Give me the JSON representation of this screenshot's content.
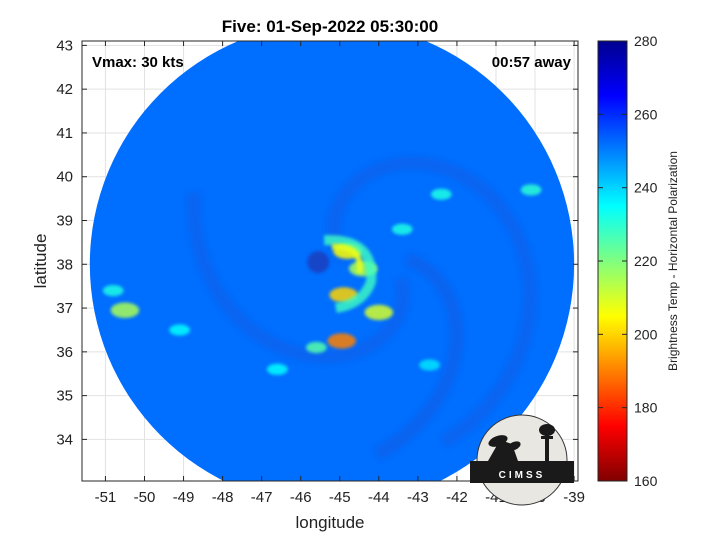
{
  "chart_data": {
    "type": "heatmap",
    "title": "Five: 01-Sep-2022 05:30:00",
    "xlabel": "longitude",
    "ylabel": "latitude",
    "xlim": [
      -51.6,
      -38.9
    ],
    "ylim": [
      33.05,
      43.1
    ],
    "x_ticks": [
      -51,
      -50,
      -49,
      -48,
      -47,
      -46,
      -45,
      -44,
      -43,
      -42,
      -41,
      -40,
      -39
    ],
    "y_ticks": [
      34,
      35,
      36,
      37,
      38,
      39,
      40,
      41,
      42,
      43
    ],
    "grid": true,
    "annotations": {
      "top_left": "Vmax: 30 kts",
      "top_right": "00:57 away"
    },
    "colorbar": {
      "label": "Brightness Temp - Horizontal Polarization",
      "range": [
        160,
        280
      ],
      "ticks": [
        160,
        180,
        200,
        220,
        240,
        260,
        280
      ],
      "colormap": "jet",
      "position": "right"
    },
    "swath": {
      "center_lon": -45.2,
      "center_lat": 38.0,
      "radius_deg": 6.2
    },
    "background_value": 252,
    "features": [
      {
        "type": "blob",
        "lon": -44.8,
        "lat": 38.3,
        "value": 205
      },
      {
        "type": "blob",
        "lon": -44.4,
        "lat": 37.9,
        "value": 215
      },
      {
        "type": "blob",
        "lon": -44.9,
        "lat": 37.3,
        "value": 200
      },
      {
        "type": "blob",
        "lon": -44.0,
        "lat": 36.9,
        "value": 210
      },
      {
        "type": "blob",
        "lon": -44.95,
        "lat": 36.25,
        "value": 190
      },
      {
        "type": "blob",
        "lon": -45.6,
        "lat": 36.1,
        "value": 225
      },
      {
        "type": "blob",
        "lon": -50.5,
        "lat": 36.95,
        "value": 215
      },
      {
        "type": "blob",
        "lon": -50.8,
        "lat": 37.4,
        "value": 232
      },
      {
        "type": "blob",
        "lon": -43.4,
        "lat": 38.8,
        "value": 232
      },
      {
        "type": "blob",
        "lon": -42.4,
        "lat": 39.6,
        "value": 232
      },
      {
        "type": "blob",
        "lon": -40.1,
        "lat": 39.7,
        "value": 230
      },
      {
        "type": "blob",
        "lon": -49.1,
        "lat": 36.5,
        "value": 235
      },
      {
        "type": "blob",
        "lon": -46.6,
        "lat": 35.6,
        "value": 235
      },
      {
        "type": "blob",
        "lon": -42.7,
        "lat": 35.7,
        "value": 238
      }
    ]
  },
  "logo": {
    "text": "CIMSS"
  }
}
